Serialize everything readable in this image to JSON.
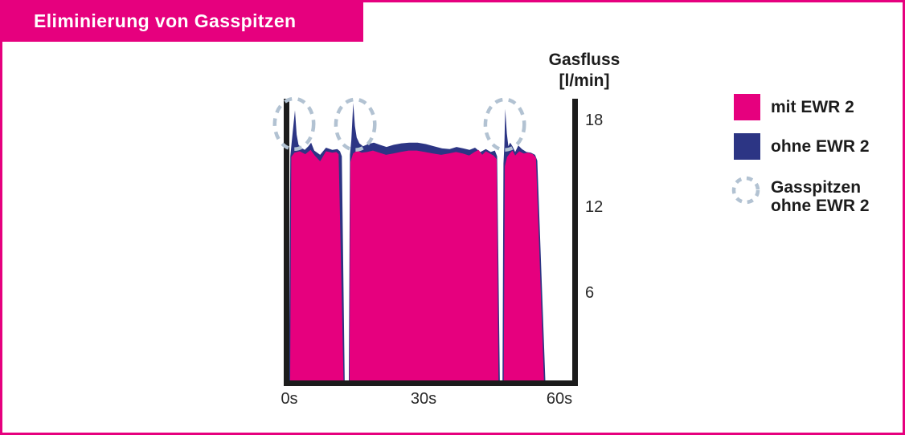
{
  "header": {
    "title": "Eliminierung von Gasspitzen"
  },
  "colors": {
    "pink": "#e6007e",
    "blue": "#2c3584",
    "dash_circle": "#b2c2d2",
    "axis": "#1c1c1c",
    "background": "#ffffff",
    "title_text": "#ffffff"
  },
  "chart_data": {
    "type": "area",
    "title": "Eliminierung von Gasspitzen",
    "ylabel_line1": "Gasfluss",
    "ylabel_line2": "[l/min]",
    "xlabel": "",
    "x_unit": "s",
    "y_unit": "l/min",
    "xlim": [
      0,
      64
    ],
    "ylim": [
      0,
      19.6
    ],
    "grid": false,
    "legend_position": "right",
    "x_ticks": [
      {
        "value": 0,
        "label": "0s"
      },
      {
        "value": 30,
        "label": "30s"
      },
      {
        "value": 60,
        "label": "60s"
      }
    ],
    "y_ticks": [
      {
        "value": 18,
        "label": "18"
      },
      {
        "value": 12,
        "label": "12"
      },
      {
        "value": 6,
        "label": "6"
      }
    ],
    "series": [
      {
        "name": "ohne EWR 2",
        "color": "#2c3584",
        "blocks": [
          {
            "x_start": 0.1,
            "x_end": 12.45,
            "points": [
              [
                0.4,
                15.5
              ],
              [
                0.8,
                16.8
              ],
              [
                1.42,
                18.7
              ],
              [
                1.8,
                17.0
              ],
              [
                2.2,
                16.3
              ],
              [
                2.8,
                16.1
              ],
              [
                3.6,
                15.95
              ],
              [
                4.4,
                16.2
              ],
              [
                5.0,
                16.45
              ],
              [
                5.7,
                15.9
              ],
              [
                7.0,
                15.6
              ],
              [
                8.3,
                16.1
              ],
              [
                9.7,
                15.95
              ],
              [
                10.8,
                16.0
              ],
              [
                11.4,
                15.85
              ],
              [
                11.8,
                15.5
              ]
            ]
          },
          {
            "x_start": 13.35,
            "x_end": 46.8,
            "points": [
              [
                13.6,
                15.6
              ],
              [
                13.9,
                16.6
              ],
              [
                14.33,
                19.2
              ],
              [
                14.7,
                17.6
              ],
              [
                15.1,
                16.8
              ],
              [
                15.7,
                16.4
              ],
              [
                16.5,
                16.2
              ],
              [
                17.6,
                16.35
              ],
              [
                18.9,
                16.45
              ],
              [
                20.2,
                16.3
              ],
              [
                21.7,
                16.15
              ],
              [
                23.3,
                16.3
              ],
              [
                25.0,
                16.4
              ],
              [
                26.8,
                16.45
              ],
              [
                28.6,
                16.45
              ],
              [
                30.4,
                16.35
              ],
              [
                32.2,
                16.2
              ],
              [
                34.0,
                16.05
              ],
              [
                35.7,
                16.0
              ],
              [
                37.2,
                16.15
              ],
              [
                38.7,
                16.05
              ],
              [
                40.1,
                15.95
              ],
              [
                41.3,
                16.1
              ],
              [
                42.5,
                15.8
              ],
              [
                43.7,
                16.0
              ],
              [
                44.8,
                15.8
              ],
              [
                45.7,
                15.9
              ],
              [
                46.2,
                15.5
              ]
            ]
          },
          {
            "x_start": 47.4,
            "x_end": 56.9,
            "points": [
              [
                47.6,
                15.0
              ],
              [
                47.8,
                16.2
              ],
              [
                48.0,
                18.8
              ],
              [
                48.35,
                17.1
              ],
              [
                48.7,
                16.2
              ],
              [
                49.1,
                16.45
              ],
              [
                49.6,
                16.2
              ],
              [
                50.2,
                15.8
              ],
              [
                50.9,
                16.25
              ],
              [
                51.7,
                16.0
              ],
              [
                52.7,
                15.8
              ],
              [
                53.7,
                15.75
              ],
              [
                54.6,
                15.6
              ],
              [
                55.1,
                15.2
              ]
            ]
          }
        ]
      },
      {
        "name": "mit EWR 2",
        "color": "#e6007e",
        "blocks": [
          {
            "x_start": 0.35,
            "x_end": 12.2,
            "points": [
              [
                0.6,
                15.45
              ],
              [
                1.3,
                15.75
              ],
              [
                2.5,
                15.85
              ],
              [
                3.7,
                15.65
              ],
              [
                4.9,
                15.95
              ],
              [
                5.8,
                15.55
              ],
              [
                7.0,
                15.15
              ],
              [
                8.3,
                15.85
              ],
              [
                9.7,
                15.75
              ],
              [
                10.6,
                15.8
              ],
              [
                11.1,
                15.65
              ]
            ]
          },
          {
            "x_start": 13.5,
            "x_end": 46.5,
            "points": [
              [
                13.7,
                15.1
              ],
              [
                14.3,
                15.7
              ],
              [
                15.2,
                15.9
              ],
              [
                16.2,
                15.75
              ],
              [
                17.4,
                15.8
              ],
              [
                18.7,
                15.9
              ],
              [
                20.1,
                15.75
              ],
              [
                21.6,
                15.6
              ],
              [
                23.2,
                15.7
              ],
              [
                24.8,
                15.8
              ],
              [
                26.6,
                15.9
              ],
              [
                28.4,
                15.9
              ],
              [
                30.2,
                15.8
              ],
              [
                32.0,
                15.7
              ],
              [
                33.8,
                15.6
              ],
              [
                35.5,
                15.7
              ],
              [
                37.1,
                15.8
              ],
              [
                38.6,
                15.7
              ],
              [
                40.0,
                15.55
              ],
              [
                41.2,
                15.8
              ],
              [
                42.1,
                15.95
              ],
              [
                42.9,
                15.6
              ],
              [
                43.7,
                15.85
              ],
              [
                44.6,
                15.7
              ],
              [
                45.4,
                15.55
              ],
              [
                46.1,
                15.3
              ]
            ]
          },
          {
            "x_start": 47.65,
            "x_end": 56.6,
            "points": [
              [
                47.9,
                14.8
              ],
              [
                48.4,
                15.45
              ],
              [
                49.0,
                15.7
              ],
              [
                49.6,
                15.9
              ],
              [
                50.2,
                15.55
              ],
              [
                51.1,
                15.85
              ],
              [
                52.1,
                15.7
              ],
              [
                53.1,
                15.75
              ],
              [
                54.1,
                15.65
              ],
              [
                54.8,
                15.4
              ]
            ]
          }
        ]
      }
    ],
    "peak_markers": {
      "label": "Gasspitzen ohne EWR 2",
      "color": "#b2c2d2",
      "rx": 4.3,
      "ry": 1.75,
      "circles": [
        {
          "x": 1.25,
          "y": 17.75
        },
        {
          "x": 14.8,
          "y": 17.7
        },
        {
          "x": 47.9,
          "y": 17.7
        }
      ]
    }
  },
  "legend": {
    "items": [
      {
        "swatch": "pink-square",
        "color": "#e6007e",
        "label": "mit EWR 2"
      },
      {
        "swatch": "blue-square",
        "color": "#2c3584",
        "label": "ohne EWR 2"
      },
      {
        "swatch": "dashed-circle",
        "color": "#b2c2d2",
        "label_line1": "Gasspitzen",
        "label_line2": "ohne EWR 2"
      }
    ]
  }
}
